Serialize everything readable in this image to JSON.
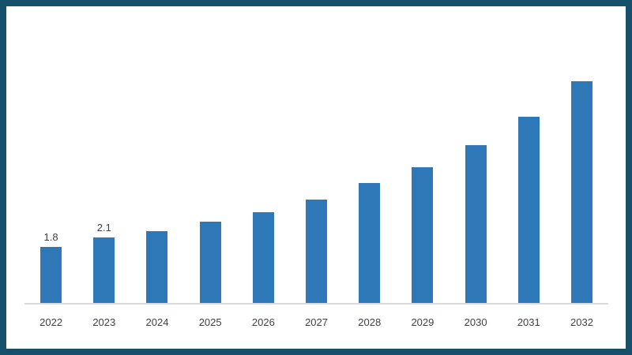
{
  "chart_data": {
    "type": "bar",
    "title": "",
    "xlabel": "",
    "ylabel": "",
    "categories": [
      "2022",
      "2023",
      "2024",
      "2025",
      "2026",
      "2027",
      "2028",
      "2029",
      "2030",
      "2031",
      "2032"
    ],
    "values": [
      1.8,
      2.1,
      2.3,
      2.6,
      2.9,
      3.3,
      3.8,
      4.3,
      5.0,
      5.9,
      7.0
    ],
    "data_labels": [
      "1.8",
      "2.1",
      "",
      "",
      "",
      "",
      "",
      "",
      "",
      "",
      ""
    ],
    "ylim": [
      0,
      7.5
    ],
    "grid": "off",
    "legend": "none",
    "y_axis_visible": false,
    "colors": {
      "bar": "#2E78B8",
      "frame_border": "#154F6A",
      "axis_line": "#D9D9D9",
      "text": "#404040",
      "background": "#FFFFFF"
    }
  }
}
